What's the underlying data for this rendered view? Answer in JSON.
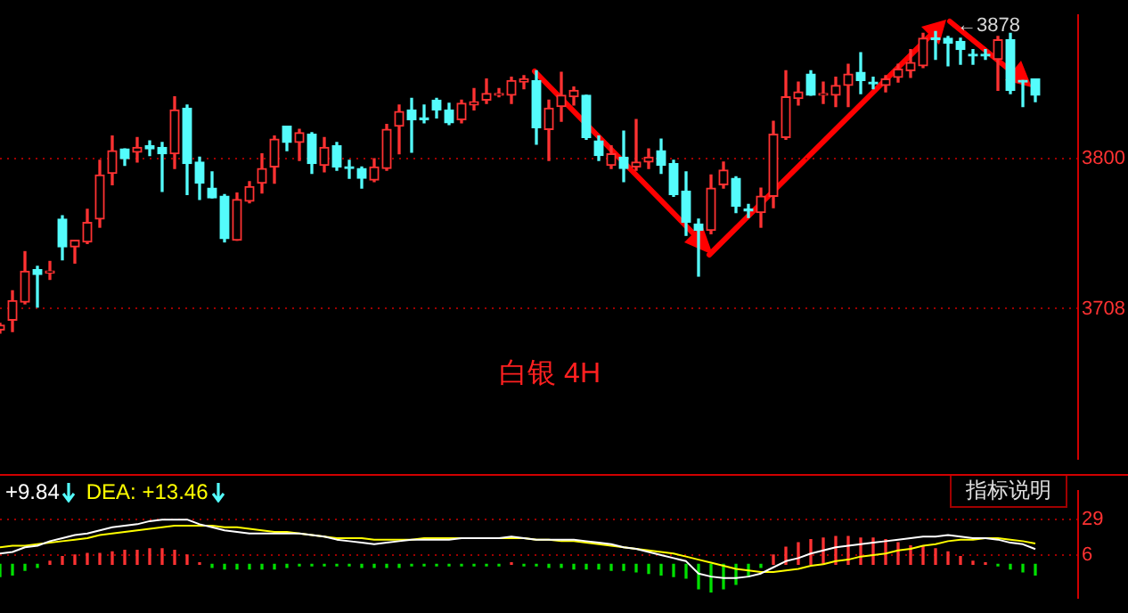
{
  "chart_data": [
    {
      "type": "candlestick",
      "categories": [
        null,
        null,
        null,
        null,
        null,
        null,
        null,
        null,
        null,
        null,
        null,
        null,
        null,
        null,
        null,
        null,
        null,
        null,
        null,
        null,
        null,
        null,
        null,
        null,
        null,
        null,
        null,
        null,
        null,
        null,
        null,
        null,
        null,
        null,
        null,
        null,
        null,
        null,
        null,
        null,
        null,
        null,
        null,
        null,
        null,
        null,
        null,
        null,
        null,
        null,
        null,
        null,
        null,
        null,
        null,
        null,
        null,
        null,
        null,
        null,
        null,
        null,
        null,
        null,
        null,
        null,
        null,
        null,
        null,
        null,
        null,
        null,
        null,
        null,
        null,
        null,
        null,
        null,
        null,
        null,
        null,
        null,
        null,
        null
      ],
      "ohlc": [
        [
          3695,
          3699,
          3693,
          3698
        ],
        [
          3701,
          3719,
          3694,
          3713
        ],
        [
          3712,
          3743,
          3711,
          3731
        ],
        [
          3732,
          3734,
          3709,
          3729
        ],
        [
          3730,
          3737,
          3726,
          3731
        ],
        [
          3763,
          3765,
          3738,
          3746
        ],
        [
          3746,
          3750,
          3736,
          3750
        ],
        [
          3749,
          3769,
          3748,
          3761
        ],
        [
          3763,
          3799,
          3758,
          3790
        ],
        [
          3791,
          3814,
          3784,
          3805
        ],
        [
          3806,
          3806,
          3796,
          3800
        ],
        [
          3804,
          3813,
          3798,
          3807
        ],
        [
          3808,
          3811,
          3802,
          3806
        ],
        [
          3807,
          3810,
          3780,
          3803
        ],
        [
          3803,
          3838,
          3794,
          3830
        ],
        [
          3831,
          3833,
          3778,
          3797
        ],
        [
          3798,
          3801,
          3775,
          3785
        ],
        [
          3782,
          3792,
          3776,
          3776
        ],
        [
          3777,
          3778,
          3749,
          3751
        ],
        [
          3750,
          3779,
          3750,
          3775
        ],
        [
          3774,
          3786,
          3773,
          3783
        ],
        [
          3785,
          3803,
          3779,
          3794
        ],
        [
          3795,
          3814,
          3785,
          3812
        ],
        [
          3820,
          3820,
          3805,
          3810
        ],
        [
          3810,
          3818,
          3799,
          3816
        ],
        [
          3815,
          3816,
          3791,
          3797
        ],
        [
          3796,
          3813,
          3792,
          3807
        ],
        [
          3808,
          3810,
          3793,
          3795
        ],
        [
          3795,
          3799,
          3788,
          3794
        ],
        [
          3794,
          3795,
          3782,
          3788
        ],
        [
          3787,
          3800,
          3786,
          3795
        ],
        [
          3794,
          3821,
          3793,
          3818
        ],
        [
          3820,
          3833,
          3803,
          3829
        ],
        [
          3830,
          3837,
          3804,
          3824
        ],
        [
          3825,
          3833,
          3822,
          3824
        ],
        [
          3836,
          3837,
          3825,
          3830
        ],
        [
          3830,
          3834,
          3821,
          3822
        ],
        [
          3824,
          3836,
          3822,
          3834
        ],
        [
          3833,
          3843,
          3830,
          3835
        ],
        [
          3836,
          3849,
          3834,
          3840
        ],
        [
          3839,
          3843,
          3838,
          3840
        ],
        [
          3839,
          3850,
          3834,
          3848
        ],
        [
          3847,
          3851,
          3843,
          3849
        ],
        [
          3848,
          3854,
          3809,
          3819
        ],
        [
          3818,
          3836,
          3799,
          3831
        ],
        [
          3832,
          3853,
          3823,
          3839
        ],
        [
          3838,
          3844,
          3833,
          3842
        ],
        [
          3839,
          3839,
          3812,
          3813
        ],
        [
          3811,
          3814,
          3799,
          3802
        ],
        [
          3796,
          3808,
          3794,
          3803
        ],
        [
          3801,
          3817,
          3786,
          3794
        ],
        [
          3795,
          3824,
          3793,
          3798
        ],
        [
          3798,
          3806,
          3794,
          3801
        ],
        [
          3805,
          3812,
          3791,
          3796
        ],
        [
          3797,
          3799,
          3777,
          3778
        ],
        [
          3780,
          3792,
          3753,
          3761
        ],
        [
          3760,
          3763,
          3728,
          3756
        ],
        [
          3756,
          3790,
          3754,
          3782
        ],
        [
          3784,
          3798,
          3782,
          3793
        ],
        [
          3788,
          3789,
          3767,
          3771
        ],
        [
          3769,
          3772,
          3764,
          3768
        ],
        [
          3767,
          3782,
          3758,
          3777
        ],
        [
          3777,
          3823,
          3770,
          3815
        ],
        [
          3813,
          3854,
          3812,
          3838
        ],
        [
          3837,
          3847,
          3833,
          3841
        ],
        [
          3852,
          3854,
          3839,
          3839
        ],
        [
          3839,
          3847,
          3834,
          3840
        ],
        [
          3839,
          3850,
          3832,
          3845
        ],
        [
          3845,
          3858,
          3832,
          3852
        ],
        [
          3853,
          3865,
          3840,
          3848
        ],
        [
          3847,
          3850,
          3843,
          3846
        ],
        [
          3845,
          3851,
          3841,
          3849
        ],
        [
          3850,
          3858,
          3847,
          3855
        ],
        [
          3854,
          3867,
          3850,
          3859
        ],
        [
          3857,
          3877,
          3856,
          3874
        ],
        [
          3874,
          3878,
          3861,
          3873
        ],
        [
          3874,
          3875,
          3857,
          3871
        ],
        [
          3872,
          3874,
          3858,
          3867
        ],
        [
          3864,
          3867,
          3858,
          3863
        ],
        [
          3864,
          3867,
          3861,
          3863
        ],
        [
          3861,
          3875,
          3842,
          3873
        ],
        [
          3873,
          3877,
          3840,
          3842
        ],
        [
          3848,
          3848,
          3832,
          3847
        ],
        [
          3849,
          3849,
          3835,
          3839
        ]
      ],
      "colors": [
        "#ff3232",
        "#ff3232",
        "#ff3232",
        "#54fcfc",
        "#ff3232",
        "#54fcfc",
        "#ff3232",
        "#ff3232",
        "#ff3232",
        "#ff3232",
        "#54fcfc",
        "#ff3232",
        "#54fcfc",
        "#54fcfc",
        "#ff3232",
        "#54fcfc",
        "#54fcfc",
        "#54fcfc",
        "#54fcfc",
        "#ff3232",
        "#ff3232",
        "#ff3232",
        "#ff3232",
        "#54fcfc",
        "#ff3232",
        "#54fcfc",
        "#ff3232",
        "#54fcfc",
        "#54fcfc",
        "#54fcfc",
        "#ff3232",
        "#ff3232",
        "#ff3232",
        "#54fcfc",
        "#54fcfc",
        "#54fcfc",
        "#54fcfc",
        "#ff3232",
        "#ff3232",
        "#ff3232",
        "#ff3232",
        "#ff3232",
        "#ff3232",
        "#54fcfc",
        "#ff3232",
        "#ff3232",
        "#ff3232",
        "#54fcfc",
        "#54fcfc",
        "#ff3232",
        "#54fcfc",
        "#ff3232",
        "#ff3232",
        "#54fcfc",
        "#54fcfc",
        "#54fcfc",
        "#54fcfc",
        "#ff3232",
        "#ff3232",
        "#54fcfc",
        "#54fcfc",
        "#ff3232",
        "#ff3232",
        "#ff3232",
        "#ff3232",
        "#54fcfc",
        "#ff3232",
        "#ff3232",
        "#ff3232",
        "#54fcfc",
        "#54fcfc",
        "#ff3232",
        "#ff3232",
        "#ff3232",
        "#ff3232",
        "#54fcfc",
        "#54fcfc",
        "#54fcfc",
        "#54fcfc",
        "#54fcfc",
        "#ff3232",
        "#54fcfc",
        "#54fcfc",
        "#54fcfc"
      ],
      "ylim": [
        3616,
        3888
      ],
      "yticks": [
        3708,
        3800
      ],
      "grid": "y",
      "tick_labels": "y",
      "annotations": [
        "←3878",
        "白银 4H"
      ]
    },
    {
      "type": "line",
      "categories": [
        null,
        null,
        null,
        null,
        null,
        null,
        null,
        null,
        null,
        null,
        null,
        null,
        null,
        null,
        null,
        null,
        null,
        null,
        null,
        null,
        null,
        null,
        null,
        null,
        null,
        null,
        null,
        null,
        null,
        null,
        null,
        null,
        null,
        null,
        null,
        null,
        null,
        null,
        null,
        null,
        null,
        null,
        null,
        null,
        null,
        null,
        null,
        null,
        null,
        null,
        null,
        null,
        null,
        null,
        null,
        null,
        null,
        null,
        null,
        null,
        null,
        null,
        null,
        null,
        null,
        null,
        null,
        null,
        null,
        null,
        null,
        null,
        null,
        null,
        null,
        null,
        null,
        null,
        null,
        null,
        null,
        null,
        null,
        null
      ],
      "series": [
        {
          "color": "#ffffff",
          "values": [
            7,
            8,
            11,
            12,
            15,
            17,
            19,
            20,
            22,
            24,
            25,
            26,
            28,
            29,
            29,
            29,
            26,
            24,
            22,
            21,
            20,
            20,
            20,
            20,
            20,
            19,
            18,
            16,
            15,
            14,
            13,
            14,
            15,
            16,
            16,
            16,
            16,
            17,
            17,
            17,
            17,
            18,
            17,
            16,
            16,
            16,
            16,
            15,
            14,
            13,
            11,
            10,
            8,
            6,
            4,
            2,
            -6,
            -8,
            -9,
            -9,
            -8,
            -6,
            -2,
            2,
            4,
            7,
            9,
            11,
            12,
            13,
            14,
            15,
            16,
            17,
            18,
            18,
            19,
            18,
            17,
            17,
            16,
            14,
            13,
            9.84
          ]
        },
        {
          "color": "#ffff00",
          "values": [
            11,
            12,
            12,
            13,
            14,
            15,
            16,
            17,
            19,
            20,
            21,
            22,
            23,
            24,
            25,
            25,
            25,
            25,
            24,
            24,
            23,
            22,
            21,
            21,
            20,
            19,
            18,
            17,
            17,
            17,
            16,
            16,
            16,
            16,
            17,
            17,
            17,
            17,
            17,
            17,
            17,
            17,
            17,
            16,
            16,
            15,
            15,
            14,
            13,
            12,
            11,
            10,
            9,
            8,
            7,
            5,
            3,
            1,
            -1,
            -3,
            -4,
            -5,
            -5,
            -4,
            -3,
            -1,
            0,
            2,
            3,
            5,
            6,
            7,
            9,
            10,
            12,
            13,
            15,
            16,
            16,
            17,
            17,
            16,
            15,
            13.46
          ]
        },
        {
          "type": "bar",
          "values": [
            -8,
            -7,
            -4,
            -2,
            2,
            5,
            6,
            7,
            7,
            8,
            9,
            9,
            10,
            10,
            9,
            6,
            1,
            -2,
            -3,
            -3,
            -3,
            -3,
            -3,
            -2,
            -1,
            -1,
            -1,
            -1,
            -1,
            -2,
            -2,
            -2,
            -2,
            -1,
            -1,
            -1,
            -1,
            -1,
            -1,
            -1,
            -1,
            1,
            -1,
            -1,
            -2,
            -2,
            -3,
            -3,
            -3,
            -4,
            -4,
            -5,
            -6,
            -7,
            -8,
            -9,
            -16,
            -18,
            -16,
            -13,
            -8,
            -2,
            6,
            11,
            14,
            16,
            17,
            18,
            18,
            17,
            17,
            16,
            14,
            12,
            12,
            10,
            8,
            5,
            2,
            1,
            -1,
            -3,
            -5,
            -7
          ],
          "colors": [
            "#00e000",
            "#00e000",
            "#00e000",
            "#00e000",
            "#ff3232",
            "#ff3232",
            "#ff3232",
            "#ff3232",
            "#ff3232",
            "#ff3232",
            "#ff3232",
            "#ff3232",
            "#ff3232",
            "#ff3232",
            "#ff3232",
            "#ff3232",
            "#ff3232",
            "#00e000",
            "#00e000",
            "#00e000",
            "#00e000",
            "#00e000",
            "#00e000",
            "#00e000",
            "#00e000",
            "#00e000",
            "#00e000",
            "#00e000",
            "#00e000",
            "#00e000",
            "#00e000",
            "#00e000",
            "#00e000",
            "#00e000",
            "#00e000",
            "#00e000",
            "#00e000",
            "#00e000",
            "#00e000",
            "#00e000",
            "#00e000",
            "#ff3232",
            "#00e000",
            "#00e000",
            "#00e000",
            "#00e000",
            "#00e000",
            "#00e000",
            "#00e000",
            "#00e000",
            "#00e000",
            "#00e000",
            "#00e000",
            "#00e000",
            "#00e000",
            "#00e000",
            "#00e000",
            "#00e000",
            "#00e000",
            "#00e000",
            "#00e000",
            "#00e000",
            "#ff3232",
            "#ff3232",
            "#ff3232",
            "#ff3232",
            "#ff3232",
            "#ff3232",
            "#ff3232",
            "#ff3232",
            "#ff3232",
            "#ff3232",
            "#ff3232",
            "#ff3232",
            "#ff3232",
            "#ff3232",
            "#ff3232",
            "#ff3232",
            "#ff3232",
            "#ff3232",
            "#00e000",
            "#00e000",
            "#00e000",
            "#00e000"
          ]
        }
      ],
      "ylim": [
        -21.7,
        47.5
      ],
      "yticks": [
        29,
        6
      ],
      "grid": "y",
      "tick_labels": "y",
      "annotations": [
        "+9.84",
        "DEA: +13.46",
        "指标说明"
      ]
    }
  ]
}
